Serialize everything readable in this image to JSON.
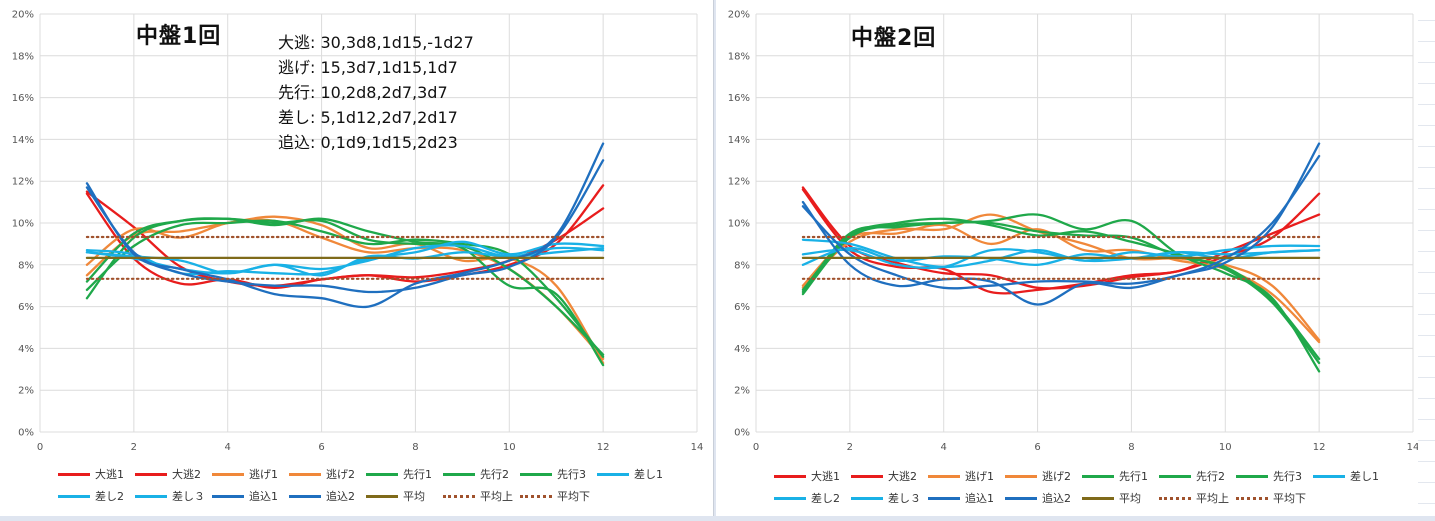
{
  "chart_data": [
    {
      "type": "line",
      "title": "中盤1回",
      "annotations": [
        "大逃: 30,3d8,1d15,-1d27",
        "逃げ: 15,3d7,1d15,1d7",
        "先行: 10,2d8,2d7,3d7",
        "差し: 5,1d12,2d7,2d17",
        "追込: 0,1d9,1d15,2d23"
      ],
      "xlim": [
        0,
        14
      ],
      "ylim": [
        0,
        0.2
      ],
      "x_ticks": [
        "0",
        "2",
        "4",
        "6",
        "8",
        "10",
        "12",
        "14"
      ],
      "y_ticks": [
        "0%",
        "2%",
        "4%",
        "6%",
        "8%",
        "10%",
        "12%",
        "14%",
        "16%",
        "18%",
        "20%"
      ],
      "grid": true,
      "legend_position": "bottom",
      "x": [
        1,
        2,
        3,
        4,
        5,
        6,
        7,
        8,
        9,
        10,
        11,
        12
      ],
      "series": [
        {
          "name": "大逃1",
          "color": "#e81d1d",
          "dotted": false,
          "values": [
            0.115,
            0.098,
            0.079,
            0.072,
            0.07,
            0.073,
            0.075,
            0.072,
            0.075,
            0.08,
            0.09,
            0.118
          ]
        },
        {
          "name": "大逃2",
          "color": "#e81d1d",
          "dotted": false,
          "values": [
            0.114,
            0.083,
            0.071,
            0.073,
            0.069,
            0.073,
            0.075,
            0.074,
            0.077,
            0.082,
            0.092,
            0.107
          ]
        },
        {
          "name": "逃げ1",
          "color": "#f0883a",
          "dotted": false,
          "values": [
            0.075,
            0.094,
            0.096,
            0.1,
            0.103,
            0.099,
            0.088,
            0.09,
            0.082,
            0.083,
            0.07,
            0.033
          ]
        },
        {
          "name": "逃げ2",
          "color": "#f0883a",
          "dotted": false,
          "values": [
            0.08,
            0.097,
            0.093,
            0.1,
            0.101,
            0.093,
            0.086,
            0.088,
            0.087,
            0.078,
            0.06,
            0.035
          ]
        },
        {
          "name": "先行1",
          "color": "#1fa84a",
          "dotted": false,
          "values": [
            0.064,
            0.093,
            0.101,
            0.102,
            0.099,
            0.102,
            0.096,
            0.091,
            0.088,
            0.07,
            0.066,
            0.032
          ]
        },
        {
          "name": "先行2",
          "color": "#1fa84a",
          "dotted": false,
          "values": [
            0.068,
            0.089,
            0.099,
            0.1,
            0.101,
            0.096,
            0.09,
            0.092,
            0.09,
            0.085,
            0.064,
            0.036
          ]
        },
        {
          "name": "先行3",
          "color": "#1fa84a",
          "dotted": false,
          "values": [
            0.072,
            0.095,
            0.101,
            0.102,
            0.1,
            0.101,
            0.092,
            0.09,
            0.089,
            0.078,
            0.06,
            0.037
          ]
        },
        {
          "name": "差し1",
          "color": "#19b1e6",
          "dotted": false,
          "values": [
            0.086,
            0.084,
            0.082,
            0.076,
            0.08,
            0.075,
            0.084,
            0.083,
            0.086,
            0.084,
            0.086,
            0.088
          ]
        },
        {
          "name": "差し2",
          "color": "#19b1e6",
          "dotted": false,
          "values": [
            0.086,
            0.083,
            0.078,
            0.076,
            0.08,
            0.078,
            0.082,
            0.088,
            0.089,
            0.084,
            0.088,
            0.087
          ]
        },
        {
          "name": "差し３",
          "color": "#19b1e6",
          "dotted": false,
          "values": [
            0.087,
            0.085,
            0.076,
            0.077,
            0.076,
            0.076,
            0.083,
            0.086,
            0.091,
            0.085,
            0.09,
            0.089
          ]
        },
        {
          "name": "追込1",
          "color": "#1f6fbf",
          "dotted": false,
          "values": [
            0.119,
            0.085,
            0.078,
            0.073,
            0.066,
            0.064,
            0.06,
            0.071,
            0.076,
            0.082,
            0.094,
            0.138
          ]
        },
        {
          "name": "追込2",
          "color": "#1f6fbf",
          "dotted": false,
          "values": [
            0.117,
            0.086,
            0.076,
            0.072,
            0.07,
            0.07,
            0.067,
            0.069,
            0.075,
            0.079,
            0.093,
            0.13
          ]
        },
        {
          "name": "平均",
          "color": "#7f6a1a",
          "dotted": false,
          "values": [
            0.0833,
            0.0833,
            0.0833,
            0.0833,
            0.0833,
            0.0833,
            0.0833,
            0.0833,
            0.0833,
            0.0833,
            0.0833,
            0.0833
          ]
        },
        {
          "name": "平均上",
          "color": "#a0522d",
          "dotted": true,
          "values": [
            0.0933,
            0.0933,
            0.0933,
            0.0933,
            0.0933,
            0.0933,
            0.0933,
            0.0933,
            0.0933,
            0.0933,
            0.0933,
            0.0933
          ]
        },
        {
          "name": "平均下",
          "color": "#a0522d",
          "dotted": true,
          "values": [
            0.0733,
            0.0733,
            0.0733,
            0.0733,
            0.0733,
            0.0733,
            0.0733,
            0.0733,
            0.0733,
            0.0733,
            0.0733,
            0.0733
          ]
        }
      ]
    },
    {
      "type": "line",
      "title": "中盤2回",
      "xlim": [
        0,
        14
      ],
      "ylim": [
        0,
        0.2
      ],
      "x_ticks": [
        "0",
        "2",
        "4",
        "6",
        "8",
        "10",
        "12",
        "14"
      ],
      "y_ticks": [
        "0%",
        "2%",
        "4%",
        "6%",
        "8%",
        "10%",
        "12%",
        "14%",
        "16%",
        "18%",
        "20%"
      ],
      "grid": true,
      "legend_position": "bottom",
      "x": [
        1,
        2,
        3,
        4,
        5,
        6,
        7,
        8,
        9,
        10,
        11,
        12
      ],
      "series": [
        {
          "name": "大逃1",
          "color": "#e81d1d",
          "dotted": false,
          "values": [
            0.117,
            0.089,
            0.081,
            0.076,
            0.075,
            0.069,
            0.07,
            0.074,
            0.077,
            0.084,
            0.093,
            0.114
          ]
        },
        {
          "name": "大逃2",
          "color": "#e81d1d",
          "dotted": false,
          "values": [
            0.116,
            0.087,
            0.079,
            0.078,
            0.067,
            0.068,
            0.071,
            0.075,
            0.077,
            0.086,
            0.095,
            0.104
          ]
        },
        {
          "name": "逃げ1",
          "color": "#f0883a",
          "dotted": false,
          "values": [
            0.069,
            0.091,
            0.097,
            0.097,
            0.104,
            0.096,
            0.09,
            0.083,
            0.083,
            0.08,
            0.07,
            0.044
          ]
        },
        {
          "name": "逃げ2",
          "color": "#f0883a",
          "dotted": false,
          "values": [
            0.07,
            0.093,
            0.095,
            0.099,
            0.09,
            0.097,
            0.087,
            0.087,
            0.082,
            0.078,
            0.066,
            0.043
          ]
        },
        {
          "name": "先行1",
          "color": "#1fa84a",
          "dotted": false,
          "values": [
            0.066,
            0.093,
            0.099,
            0.1,
            0.101,
            0.104,
            0.097,
            0.101,
            0.085,
            0.076,
            0.064,
            0.029
          ]
        },
        {
          "name": "先行2",
          "color": "#1fa84a",
          "dotted": false,
          "values": [
            0.068,
            0.094,
            0.1,
            0.102,
            0.099,
            0.094,
            0.096,
            0.091,
            0.085,
            0.078,
            0.062,
            0.033
          ]
        },
        {
          "name": "先行3",
          "color": "#1fa84a",
          "dotted": false,
          "values": [
            0.067,
            0.095,
            0.098,
            0.1,
            0.1,
            0.096,
            0.094,
            0.093,
            0.084,
            0.079,
            0.063,
            0.035
          ]
        },
        {
          "name": "差し1",
          "color": "#19b1e6",
          "dotted": false,
          "values": [
            0.092,
            0.09,
            0.083,
            0.079,
            0.082,
            0.087,
            0.082,
            0.086,
            0.084,
            0.087,
            0.089,
            0.089
          ]
        },
        {
          "name": "差し2",
          "color": "#19b1e6",
          "dotted": false,
          "values": [
            0.08,
            0.088,
            0.082,
            0.084,
            0.083,
            0.08,
            0.085,
            0.083,
            0.086,
            0.085,
            0.086,
            0.087
          ]
        },
        {
          "name": "差し３",
          "color": "#19b1e6",
          "dotted": false,
          "values": [
            0.085,
            0.087,
            0.08,
            0.079,
            0.087,
            0.086,
            0.082,
            0.083,
            0.086,
            0.083,
            0.086,
            0.087
          ]
        },
        {
          "name": "追込1",
          "color": "#1f6fbf",
          "dotted": false,
          "values": [
            0.11,
            0.08,
            0.07,
            0.073,
            0.072,
            0.061,
            0.071,
            0.069,
            0.075,
            0.081,
            0.098,
            0.138
          ]
        },
        {
          "name": "追込2",
          "color": "#1f6fbf",
          "dotted": false,
          "values": [
            0.108,
            0.085,
            0.075,
            0.069,
            0.07,
            0.072,
            0.072,
            0.071,
            0.075,
            0.083,
            0.1,
            0.132
          ]
        },
        {
          "name": "平均",
          "color": "#7f6a1a",
          "dotted": false,
          "values": [
            0.0833,
            0.0833,
            0.0833,
            0.0833,
            0.0833,
            0.0833,
            0.0833,
            0.0833,
            0.0833,
            0.0833,
            0.0833,
            0.0833
          ]
        },
        {
          "name": "平均上",
          "color": "#a0522d",
          "dotted": true,
          "values": [
            0.0933,
            0.0933,
            0.0933,
            0.0933,
            0.0933,
            0.0933,
            0.0933,
            0.0933,
            0.0933,
            0.0933,
            0.0933,
            0.0933
          ]
        },
        {
          "name": "平均下",
          "color": "#a0522d",
          "dotted": true,
          "values": [
            0.0733,
            0.0733,
            0.0733,
            0.0733,
            0.0733,
            0.0733,
            0.0733,
            0.0733,
            0.0733,
            0.0733,
            0.0733,
            0.0733
          ]
        }
      ]
    }
  ]
}
